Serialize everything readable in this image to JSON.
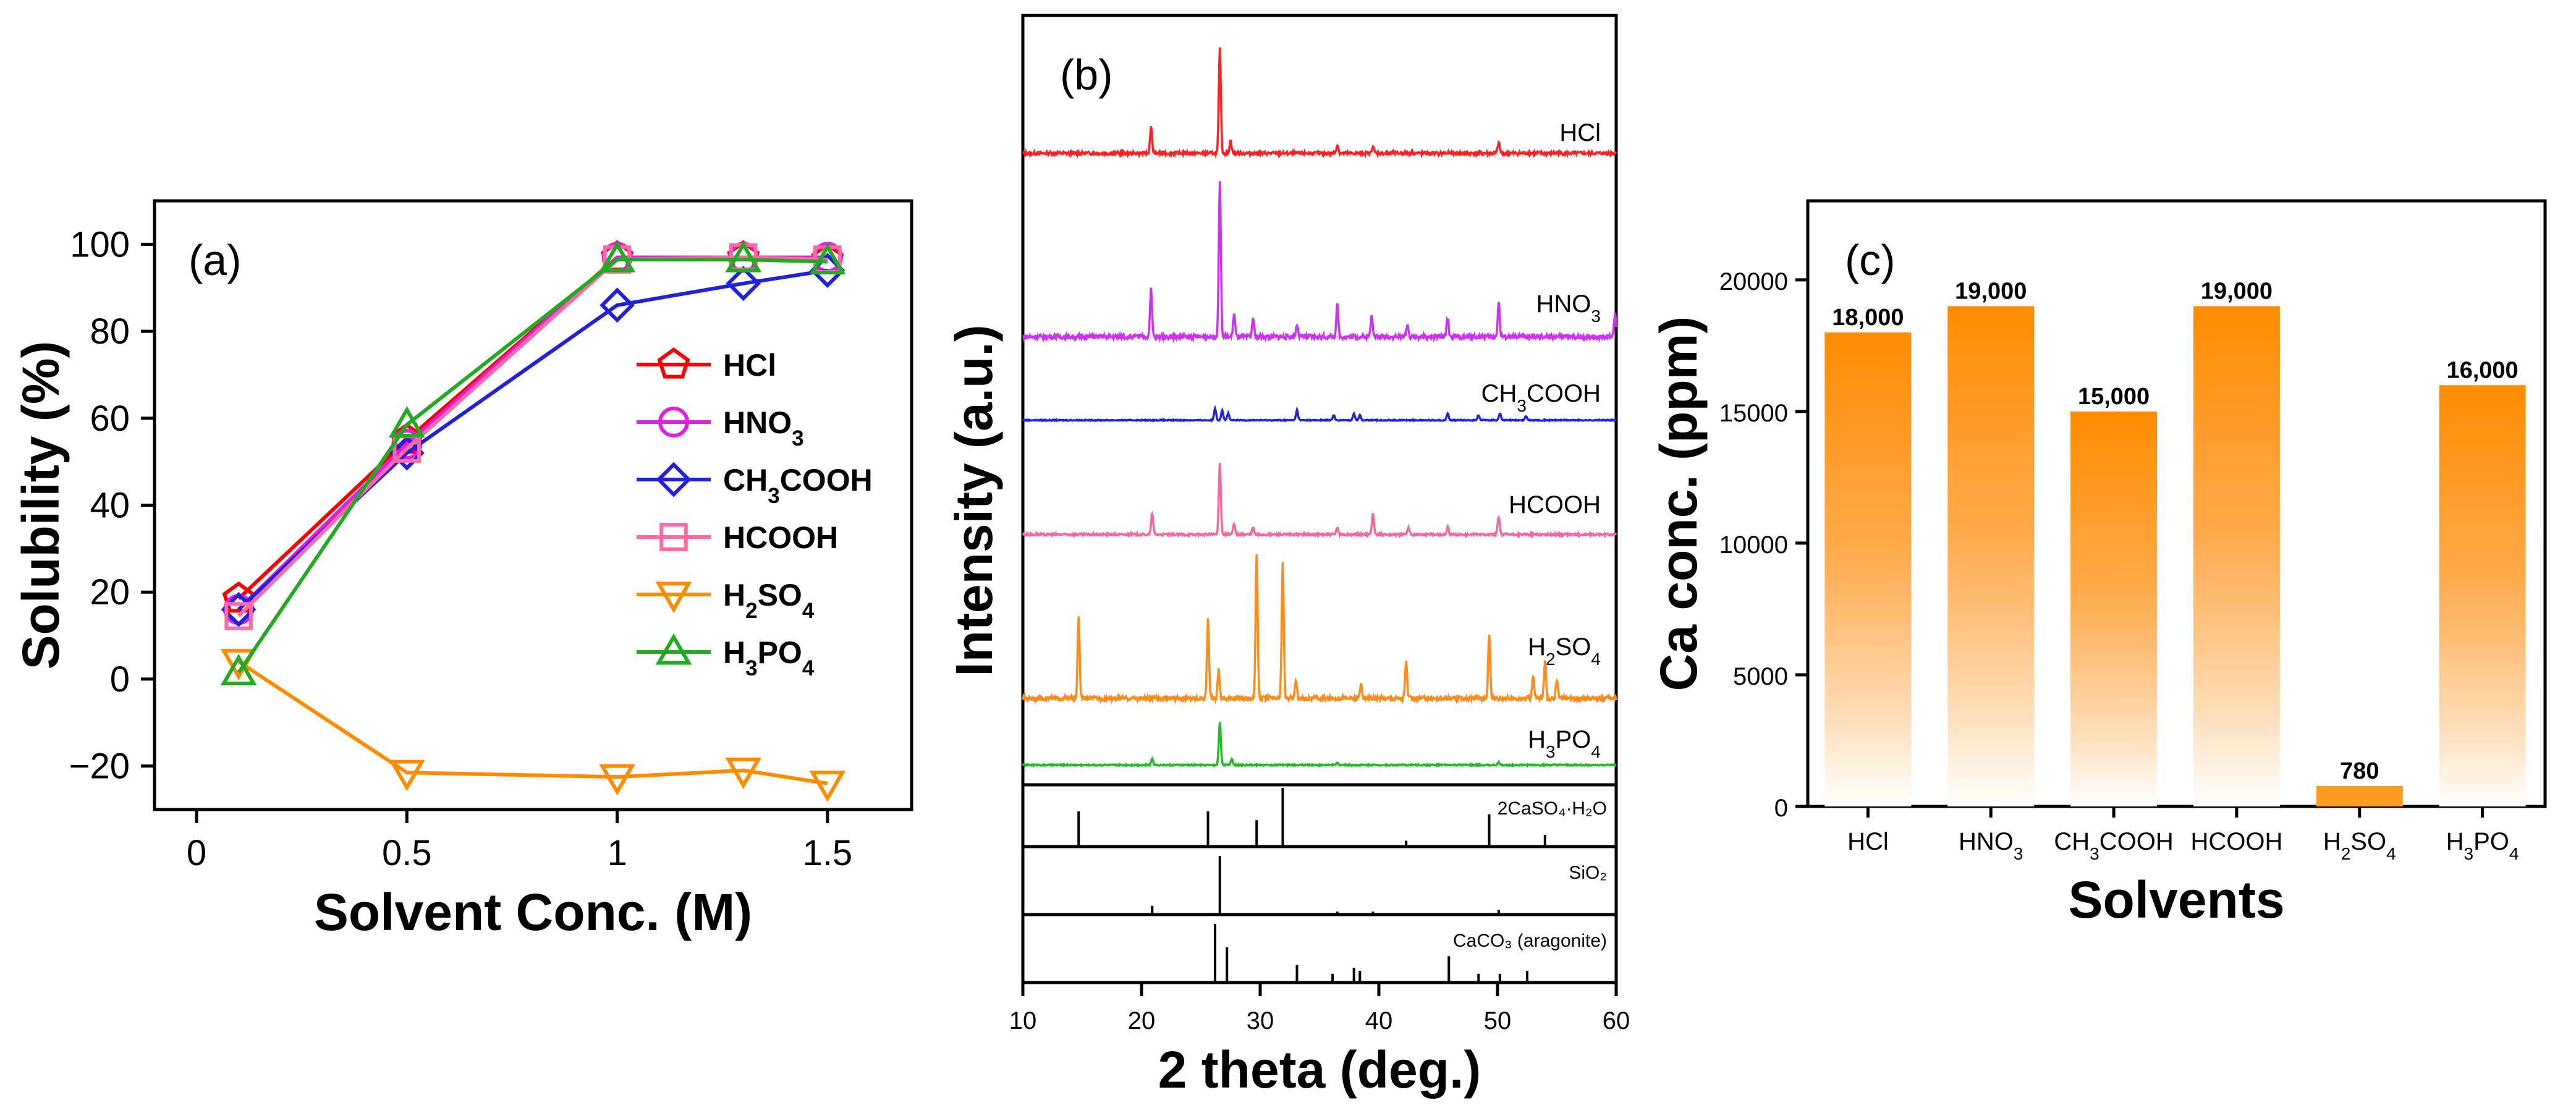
{
  "chart_data": [
    {
      "panel": "(a)",
      "type": "line",
      "xlabel": "Solvent Conc. (M)",
      "ylabel": "Solubility (%)",
      "xlim": [
        -0.1,
        1.7
      ],
      "ylim": [
        -30,
        110
      ],
      "xticks": [
        0.0,
        0.5,
        1.0,
        1.5
      ],
      "yticks": [
        -20,
        0,
        20,
        40,
        60,
        80,
        100
      ],
      "x": [
        0.1,
        0.5,
        1.0,
        1.3,
        1.5
      ],
      "legend_position": "center-right",
      "series": [
        {
          "name": "HCl",
          "sub": "",
          "color": "#ff0000",
          "marker": "pentagon",
          "values": [
            18.5,
            55,
            97,
            97,
            96.5
          ]
        },
        {
          "name": "HNO",
          "sub": "3",
          "color": "#dd22dd",
          "marker": "circle",
          "values": [
            16,
            54,
            97,
            97,
            97
          ]
        },
        {
          "name": "CH",
          "sub": "3",
          "name2": "COOH",
          "color": "#2020dd",
          "marker": "diamond",
          "values": [
            16,
            52,
            86,
            91,
            94
          ]
        },
        {
          "name": "HCOOH",
          "sub": "",
          "color": "#ff6aa6",
          "marker": "square",
          "values": [
            14.5,
            53,
            96.5,
            97,
            96.5
          ]
        },
        {
          "name": "H",
          "sub": "2",
          "name2": "SO",
          "sub2": "4",
          "color": "#ff8c00",
          "marker": "triangle-down",
          "values": [
            4,
            -21.5,
            -22.5,
            -21,
            -24
          ]
        },
        {
          "name": "H",
          "sub": "3",
          "name2": "PO",
          "sub2": "4",
          "color": "#22aa22",
          "marker": "triangle-up",
          "values": [
            1.5,
            58.5,
            96.5,
            96.5,
            96
          ]
        }
      ]
    },
    {
      "panel": "(b)",
      "type": "line",
      "xlabel": "2 theta (deg.)",
      "ylabel": "Intensity (a.u.)",
      "xlim": [
        10,
        60
      ],
      "xticks": [
        10,
        20,
        30,
        40,
        50,
        60
      ],
      "grid": false,
      "series": [
        {
          "name": "HCl",
          "sub": "",
          "color": "#ff2020",
          "peaks": [
            [
              20.8,
              0.25
            ],
            [
              26.6,
              1.0
            ],
            [
              27.5,
              0.12
            ],
            [
              36.5,
              0.08
            ],
            [
              39.5,
              0.07
            ],
            [
              50.1,
              0.1
            ]
          ]
        },
        {
          "name": "HNO",
          "sub": "3",
          "color": "#cc33ee",
          "peaks": [
            [
              20.8,
              0.3
            ],
            [
              26.6,
              1.0
            ],
            [
              27.8,
              0.15
            ],
            [
              29.4,
              0.12
            ],
            [
              33.1,
              0.08
            ],
            [
              36.5,
              0.2
            ],
            [
              39.4,
              0.15
            ],
            [
              42.4,
              0.08
            ],
            [
              45.8,
              0.12
            ],
            [
              50.1,
              0.22
            ],
            [
              59.9,
              0.15
            ]
          ]
        },
        {
          "name": "CH",
          "sub": "3",
          "name2": "COOH",
          "color": "#2222dd",
          "peaks": [
            [
              26.2,
              0.35
            ],
            [
              26.8,
              0.3
            ],
            [
              27.3,
              0.2
            ],
            [
              33.1,
              0.3
            ],
            [
              36.2,
              0.15
            ],
            [
              37.9,
              0.2
            ],
            [
              38.4,
              0.15
            ],
            [
              45.8,
              0.2
            ],
            [
              48.4,
              0.15
            ],
            [
              50.2,
              0.2
            ],
            [
              52.4,
              0.12
            ]
          ]
        },
        {
          "name": "HCOOH",
          "sub": "",
          "color": "#ee6aa0",
          "peaks": [
            [
              20.9,
              0.3
            ],
            [
              26.6,
              1.0
            ],
            [
              27.8,
              0.15
            ],
            [
              29.4,
              0.1
            ],
            [
              36.5,
              0.1
            ],
            [
              39.5,
              0.3
            ],
            [
              42.5,
              0.1
            ],
            [
              45.8,
              0.1
            ],
            [
              50.1,
              0.25
            ]
          ]
        },
        {
          "name": "H",
          "sub": "2",
          "name2": "SO",
          "sub2": "4",
          "color": "#ff8c1a",
          "peaks": [
            [
              14.7,
              0.55
            ],
            [
              25.6,
              0.55
            ],
            [
              26.5,
              0.2
            ],
            [
              29.7,
              1.0
            ],
            [
              31.9,
              0.95
            ],
            [
              33.0,
              0.12
            ],
            [
              38.5,
              0.1
            ],
            [
              42.3,
              0.25
            ],
            [
              49.3,
              0.45
            ],
            [
              53.0,
              0.15
            ],
            [
              54.0,
              0.25
            ],
            [
              55.0,
              0.12
            ]
          ]
        },
        {
          "name": "H",
          "sub": "3",
          "name2": "PO",
          "sub2": "4",
          "color": "#22bb22",
          "peaks": [
            [
              20.9,
              0.15
            ],
            [
              26.6,
              1.0
            ],
            [
              27.6,
              0.15
            ],
            [
              36.5,
              0.05
            ],
            [
              50.1,
              0.06
            ]
          ]
        }
      ],
      "references": [
        {
          "label": "2CaSO₄·H₂O",
          "peaks": [
            [
              14.7,
              0.6
            ],
            [
              25.6,
              0.6
            ],
            [
              29.7,
              0.45
            ],
            [
              31.9,
              1.0
            ],
            [
              42.3,
              0.1
            ],
            [
              49.3,
              0.55
            ],
            [
              54.0,
              0.2
            ]
          ]
        },
        {
          "label": "SiO₂",
          "peaks": [
            [
              20.9,
              0.15
            ],
            [
              26.6,
              1.0
            ],
            [
              36.5,
              0.05
            ],
            [
              39.5,
              0.05
            ],
            [
              50.1,
              0.08
            ]
          ]
        },
        {
          "label": "CaCO₃ (aragonite)",
          "peaks": [
            [
              26.2,
              1.0
            ],
            [
              27.2,
              0.6
            ],
            [
              33.1,
              0.3
            ],
            [
              36.1,
              0.15
            ],
            [
              37.9,
              0.25
            ],
            [
              38.4,
              0.2
            ],
            [
              45.9,
              0.45
            ],
            [
              48.4,
              0.15
            ],
            [
              50.2,
              0.15
            ],
            [
              52.5,
              0.2
            ]
          ]
        }
      ]
    },
    {
      "panel": "(c)",
      "type": "bar",
      "xlabel": "Solvents",
      "ylabel": "Ca conc. (ppm)",
      "ylim": [
        0,
        23000
      ],
      "yticks": [
        0,
        5000,
        10000,
        15000,
        20000
      ],
      "categories": [
        {
          "name": "HCl",
          "sub": ""
        },
        {
          "name": "HNO",
          "sub": "3"
        },
        {
          "name": "CH",
          "sub": "3",
          "name2": "COOH"
        },
        {
          "name": "HCOOH",
          "sub": ""
        },
        {
          "name": "H",
          "sub": "2",
          "name2": "SO",
          "sub2": "4"
        },
        {
          "name": "H",
          "sub": "3",
          "name2": "PO",
          "sub2": "4"
        }
      ],
      "values": [
        18000,
        19000,
        15000,
        19000,
        780,
        16000
      ],
      "data_labels": [
        "18,000",
        "19,000",
        "15,000",
        "19,000",
        "780",
        "16,000"
      ],
      "bar_color": "#ff8c00"
    }
  ]
}
